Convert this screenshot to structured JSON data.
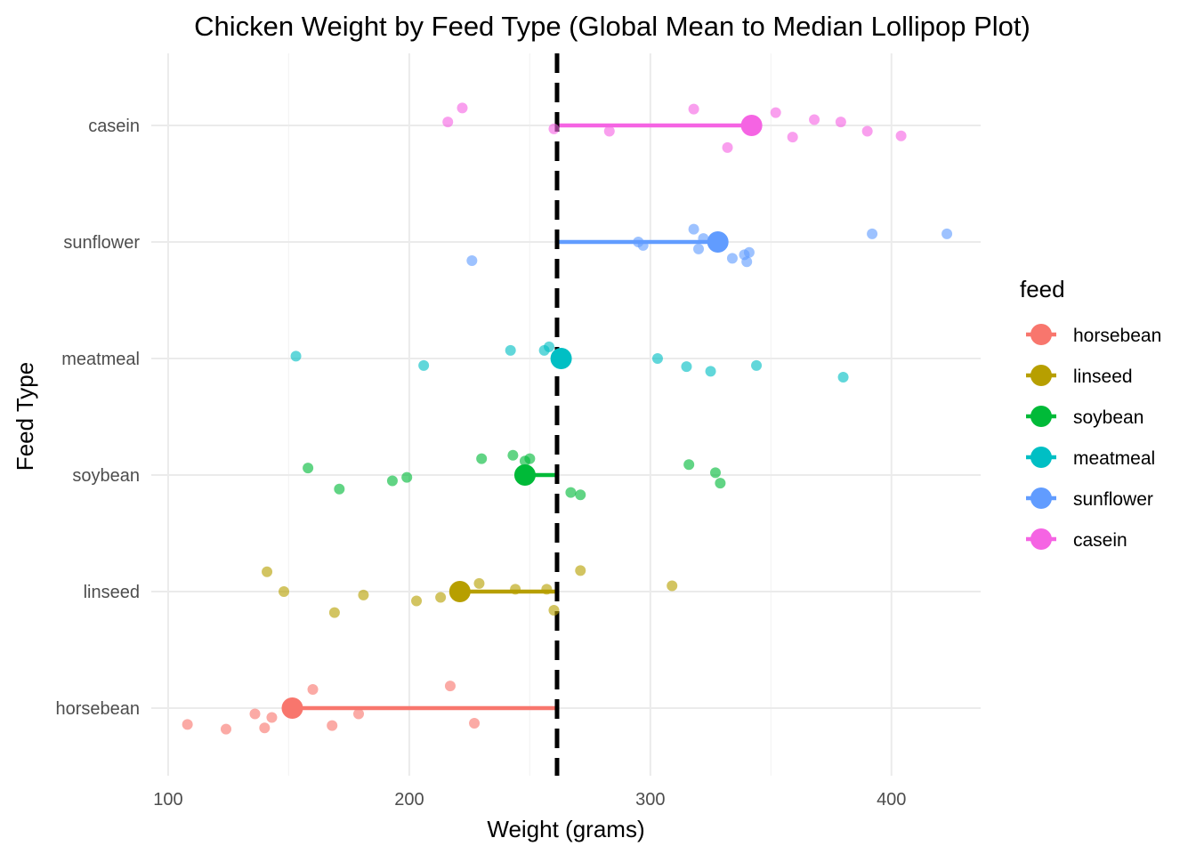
{
  "chart_data": {
    "type": "scatter",
    "title": "Chicken Weight by Feed Type (Global Mean to Median Lollipop Plot)",
    "xlabel": "Weight (grams)",
    "ylabel": "Feed Type",
    "xlim": [
      93,
      437
    ],
    "x_ticks": [
      100,
      200,
      300,
      400
    ],
    "x_tick_labels": [
      "100",
      "200",
      "300",
      "400"
    ],
    "grid": true,
    "global_mean": 261.3,
    "legend": {
      "title": "feed",
      "position": "right"
    },
    "categories": [
      "horsebean",
      "linseed",
      "soybean",
      "meatmeal",
      "sunflower",
      "casein"
    ],
    "series": [
      {
        "name": "horsebean",
        "color": "#F8766D",
        "median": 151.5,
        "points": [
          {
            "x": 108,
            "dy": -0.14
          },
          {
            "x": 124,
            "dy": -0.18
          },
          {
            "x": 136,
            "dy": -0.05
          },
          {
            "x": 140,
            "dy": -0.17
          },
          {
            "x": 143,
            "dy": -0.08
          },
          {
            "x": 160,
            "dy": 0.16
          },
          {
            "x": 168,
            "dy": -0.15
          },
          {
            "x": 179,
            "dy": -0.05
          },
          {
            "x": 217,
            "dy": 0.19
          },
          {
            "x": 227,
            "dy": -0.13
          }
        ]
      },
      {
        "name": "linseed",
        "color": "#B79F00",
        "median": 221,
        "points": [
          {
            "x": 141,
            "dy": 0.17
          },
          {
            "x": 148,
            "dy": 0.0
          },
          {
            "x": 169,
            "dy": -0.18
          },
          {
            "x": 181,
            "dy": -0.03
          },
          {
            "x": 203,
            "dy": -0.08
          },
          {
            "x": 213,
            "dy": -0.05
          },
          {
            "x": 229,
            "dy": 0.07
          },
          {
            "x": 244,
            "dy": 0.02
          },
          {
            "x": 257,
            "dy": 0.02
          },
          {
            "x": 260,
            "dy": -0.16
          },
          {
            "x": 271,
            "dy": 0.18
          },
          {
            "x": 309,
            "dy": 0.05
          }
        ]
      },
      {
        "name": "soybean",
        "color": "#00BA38",
        "median": 248,
        "points": [
          {
            "x": 158,
            "dy": 0.06
          },
          {
            "x": 171,
            "dy": -0.12
          },
          {
            "x": 193,
            "dy": -0.05
          },
          {
            "x": 199,
            "dy": -0.02
          },
          {
            "x": 230,
            "dy": 0.14
          },
          {
            "x": 243,
            "dy": 0.17
          },
          {
            "x": 248,
            "dy": 0.12
          },
          {
            "x": 250,
            "dy": 0.14
          },
          {
            "x": 267,
            "dy": -0.15
          },
          {
            "x": 271,
            "dy": -0.17
          },
          {
            "x": 316,
            "dy": 0.09
          },
          {
            "x": 327,
            "dy": 0.02
          },
          {
            "x": 329,
            "dy": -0.07
          }
        ]
      },
      {
        "name": "meatmeal",
        "color": "#00BFC4",
        "median": 263,
        "points": [
          {
            "x": 153,
            "dy": 0.02
          },
          {
            "x": 206,
            "dy": -0.06
          },
          {
            "x": 242,
            "dy": 0.07
          },
          {
            "x": 256,
            "dy": 0.07
          },
          {
            "x": 258,
            "dy": 0.1
          },
          {
            "x": 263,
            "dy": 0.03
          },
          {
            "x": 303,
            "dy": 0.0
          },
          {
            "x": 315,
            "dy": -0.07
          },
          {
            "x": 325,
            "dy": -0.11
          },
          {
            "x": 344,
            "dy": -0.06
          },
          {
            "x": 380,
            "dy": -0.16
          }
        ]
      },
      {
        "name": "sunflower",
        "color": "#619CFF",
        "median": 328,
        "points": [
          {
            "x": 226,
            "dy": -0.16
          },
          {
            "x": 295,
            "dy": 0.0
          },
          {
            "x": 297,
            "dy": -0.03
          },
          {
            "x": 318,
            "dy": 0.11
          },
          {
            "x": 320,
            "dy": -0.06
          },
          {
            "x": 322,
            "dy": 0.03
          },
          {
            "x": 334,
            "dy": -0.14
          },
          {
            "x": 339,
            "dy": -0.11
          },
          {
            "x": 340,
            "dy": -0.17
          },
          {
            "x": 341,
            "dy": -0.09
          },
          {
            "x": 392,
            "dy": 0.07
          },
          {
            "x": 423,
            "dy": 0.07
          }
        ]
      },
      {
        "name": "casein",
        "color": "#F564E3",
        "median": 342,
        "points": [
          {
            "x": 216,
            "dy": 0.03
          },
          {
            "x": 222,
            "dy": 0.15
          },
          {
            "x": 260,
            "dy": -0.03
          },
          {
            "x": 283,
            "dy": -0.05
          },
          {
            "x": 318,
            "dy": 0.14
          },
          {
            "x": 332,
            "dy": -0.19
          },
          {
            "x": 352,
            "dy": 0.11
          },
          {
            "x": 359,
            "dy": -0.1
          },
          {
            "x": 368,
            "dy": 0.05
          },
          {
            "x": 379,
            "dy": 0.03
          },
          {
            "x": 390,
            "dy": -0.05
          },
          {
            "x": 404,
            "dy": -0.09
          }
        ]
      }
    ]
  }
}
